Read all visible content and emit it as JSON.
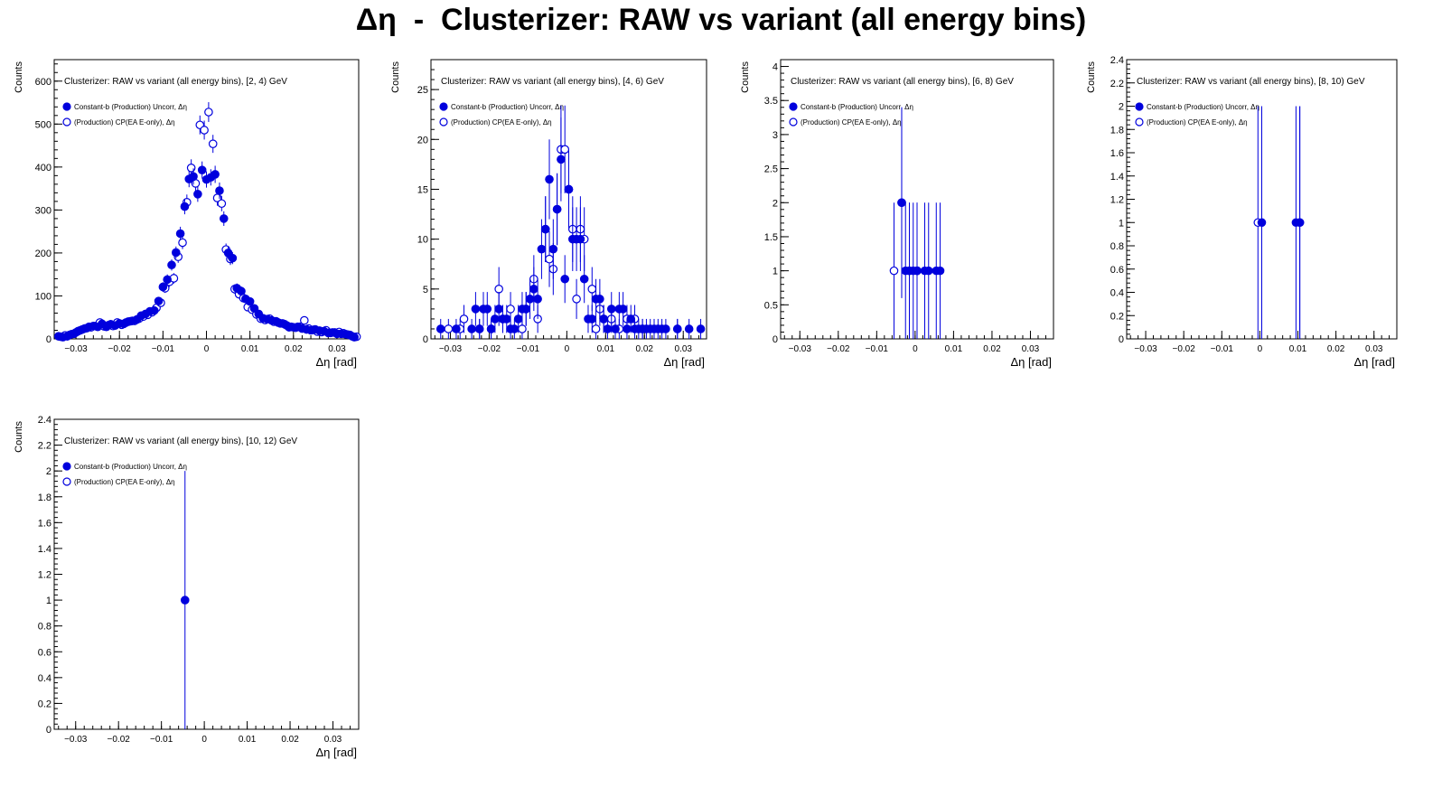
{
  "page_title": "Δη  -  Clusterizer: RAW vs variant (all energy bins)",
  "colors": {
    "marker": "#0000dd",
    "axis": "#000000",
    "frame": "#000000"
  },
  "chart_data": [
    {
      "type": "scatter",
      "title": "Clusterizer: RAW vs variant (all energy bins), [2, 4) GeV",
      "xlabel": "Δη  [rad]",
      "ylabel": "Counts",
      "xlim": [
        -0.035,
        0.035
      ],
      "ylim": [
        0,
        650
      ],
      "xticks": [
        -0.03,
        -0.02,
        -0.01,
        0,
        0.01,
        0.02,
        0.03
      ],
      "xtick_labels": [
        "−0.03",
        "−0.02",
        "−0.01",
        "0",
        "0.01",
        "0.02",
        "0.03"
      ],
      "yticks": [
        0,
        100,
        200,
        300,
        400,
        500,
        600
      ],
      "ytick_labels": [
        "0",
        "100",
        "200",
        "300",
        "400",
        "500",
        "600"
      ],
      "legend_position": "top-left",
      "series": [
        {
          "name": "Constant-b (Production) Uncorr, Δη",
          "marker": "filled",
          "x": [
            -0.034,
            -0.033,
            -0.032,
            -0.031,
            -0.03,
            -0.029,
            -0.028,
            -0.027,
            -0.026,
            -0.025,
            -0.024,
            -0.023,
            -0.022,
            -0.021,
            -0.02,
            -0.019,
            -0.018,
            -0.017,
            -0.016,
            -0.015,
            -0.014,
            -0.013,
            -0.012,
            -0.011,
            -0.01,
            -0.009,
            -0.008,
            -0.007,
            -0.006,
            -0.005,
            -0.004,
            -0.003,
            -0.002,
            -0.001,
            0.0,
            0.001,
            0.002,
            0.003,
            0.004,
            0.005,
            0.006,
            0.007,
            0.008,
            0.009,
            0.01,
            0.011,
            0.012,
            0.013,
            0.014,
            0.015,
            0.016,
            0.017,
            0.018,
            0.019,
            0.02,
            0.021,
            0.022,
            0.023,
            0.024,
            0.025,
            0.026,
            0.027,
            0.028,
            0.029,
            0.03,
            0.031,
            0.032,
            0.033,
            0.034
          ],
          "y": [
            6,
            4,
            6,
            11,
            15,
            20,
            24,
            28,
            30,
            28,
            35,
            28,
            34,
            31,
            36,
            35,
            40,
            42,
            45,
            54,
            58,
            64,
            66,
            88,
            121,
            138,
            172,
            201,
            245,
            308,
            372,
            378,
            337,
            393,
            371,
            376,
            383,
            345,
            280,
            200,
            188,
            118,
            111,
            93,
            87,
            71,
            58,
            48,
            46,
            43,
            41,
            36,
            34,
            27,
            27,
            28,
            24,
            22,
            20,
            22,
            19,
            18,
            14,
            15,
            12,
            12,
            11,
            9,
            4
          ],
          "err": [
            3,
            2,
            3,
            3,
            4,
            5,
            5,
            5,
            6,
            5,
            6,
            5,
            6,
            6,
            6,
            6,
            6,
            7,
            7,
            7,
            8,
            8,
            8,
            9,
            11,
            12,
            13,
            14,
            16,
            18,
            19,
            19,
            18,
            20,
            19,
            19,
            20,
            19,
            17,
            14,
            14,
            11,
            11,
            10,
            9,
            8,
            8,
            7,
            7,
            7,
            6,
            6,
            6,
            5,
            5,
            5,
            5,
            5,
            4,
            5,
            4,
            4,
            4,
            4,
            3,
            3,
            3,
            3,
            2
          ]
        },
        {
          "name": "(Production) CP(EA E-only), Δη",
          "marker": "open",
          "x": [
            -0.0335,
            -0.0325,
            -0.0315,
            -0.0305,
            -0.0295,
            -0.0285,
            -0.0275,
            -0.0265,
            -0.0255,
            -0.0245,
            -0.0235,
            -0.0225,
            -0.0215,
            -0.0205,
            -0.0195,
            -0.0185,
            -0.0175,
            -0.0165,
            -0.0155,
            -0.0145,
            -0.0135,
            -0.0125,
            -0.0115,
            -0.0105,
            -0.0095,
            -0.0085,
            -0.0075,
            -0.0065,
            -0.0055,
            -0.0045,
            -0.0035,
            -0.0025,
            -0.0015,
            -0.0005,
            0.0005,
            0.0015,
            0.0025,
            0.0035,
            0.0045,
            0.0055,
            0.0065,
            0.0075,
            0.0085,
            0.0095,
            0.0105,
            0.0115,
            0.0125,
            0.0135,
            0.0145,
            0.0155,
            0.0165,
            0.0175,
            0.0185,
            0.0195,
            0.0205,
            0.0215,
            0.0225,
            0.0235,
            0.0245,
            0.0255,
            0.0265,
            0.0275,
            0.0285,
            0.0295,
            0.0305,
            0.0315,
            0.0325,
            0.0335,
            0.0345
          ],
          "y": [
            5,
            8,
            9,
            12,
            18,
            22,
            25,
            27,
            30,
            38,
            29,
            32,
            30,
            38,
            33,
            38,
            41,
            42,
            47,
            52,
            56,
            62,
            72,
            84,
            118,
            133,
            141,
            191,
            224,
            318,
            398,
            362,
            498,
            486,
            528,
            454,
            328,
            315,
            208,
            186,
            116,
            104,
            95,
            74,
            68,
            57,
            47,
            44,
            47,
            40,
            38,
            36,
            31,
            28,
            26,
            28,
            43,
            24,
            21,
            17,
            16,
            20,
            14,
            15,
            16,
            13,
            10,
            6,
            5
          ],
          "err": [
            2,
            3,
            3,
            3,
            4,
            5,
            5,
            5,
            5,
            6,
            5,
            6,
            5,
            6,
            6,
            6,
            6,
            7,
            7,
            7,
            7,
            8,
            8,
            9,
            11,
            12,
            12,
            14,
            15,
            18,
            20,
            19,
            22,
            22,
            23,
            21,
            18,
            18,
            14,
            14,
            11,
            10,
            10,
            9,
            8,
            8,
            7,
            7,
            7,
            6,
            6,
            6,
            6,
            5,
            5,
            5,
            7,
            5,
            5,
            4,
            4,
            4,
            4,
            4,
            4,
            4,
            3,
            2,
            2
          ]
        }
      ]
    },
    {
      "type": "scatter",
      "title": "Clusterizer: RAW vs variant (all energy bins), [4, 6) GeV",
      "xlabel": "Δη  [rad]",
      "ylabel": "Counts",
      "xlim": [
        -0.035,
        0.036
      ],
      "ylim": [
        0,
        28
      ],
      "xticks": [
        -0.03,
        -0.02,
        -0.01,
        0,
        0.01,
        0.02,
        0.03
      ],
      "xtick_labels": [
        "−0.03",
        "−0.02",
        "−0.01",
        "0",
        "0.01",
        "0.02",
        "0.03"
      ],
      "yticks": [
        0,
        5,
        10,
        15,
        20,
        25
      ],
      "ytick_labels": [
        "0",
        "5",
        "10",
        "15",
        "20",
        "25"
      ],
      "legend_position": "top-left",
      "series": [
        {
          "name": "Constant-b (Production) Uncorr, Δη",
          "marker": "filled",
          "x": [
            -0.0325,
            -0.0285,
            -0.0245,
            -0.0235,
            -0.0225,
            -0.0215,
            -0.0205,
            -0.0195,
            -0.0185,
            -0.0175,
            -0.0165,
            -0.0155,
            -0.0145,
            -0.0135,
            -0.0125,
            -0.0115,
            -0.0105,
            -0.0095,
            -0.0085,
            -0.0075,
            -0.0065,
            -0.0055,
            -0.0045,
            -0.0035,
            -0.0025,
            -0.0015,
            -0.0005,
            0.0005,
            0.0015,
            0.0025,
            0.0035,
            0.0045,
            0.0055,
            0.0065,
            0.0075,
            0.0085,
            0.0095,
            0.0105,
            0.0115,
            0.0125,
            0.0135,
            0.0145,
            0.0155,
            0.0165,
            0.0175,
            0.0185,
            0.0195,
            0.0205,
            0.0215,
            0.0225,
            0.0235,
            0.0245,
            0.0255,
            0.0285,
            0.0315,
            0.0345
          ],
          "x_note": "",
          "y": [
            1,
            1,
            1,
            3,
            1,
            3,
            3,
            1,
            2,
            3,
            2,
            2,
            1,
            1,
            2,
            3,
            3,
            4,
            5,
            4,
            9,
            11,
            16,
            9,
            13,
            18,
            6,
            15,
            10,
            10,
            10,
            6,
            2,
            2,
            4,
            4,
            2,
            1,
            3,
            1,
            3,
            3,
            1,
            2,
            1,
            1,
            1,
            1,
            1,
            1,
            1,
            1,
            1,
            1,
            1,
            1
          ],
          "err": [
            1,
            1,
            1,
            1.7,
            1,
            1.7,
            1.7,
            1,
            1.4,
            1.7,
            1.4,
            1.4,
            1,
            1,
            1.4,
            1.7,
            1.7,
            2,
            2.2,
            2,
            3,
            3.3,
            4,
            3,
            3.6,
            4.2,
            2.4,
            3.9,
            3.2,
            3.2,
            3.2,
            2.4,
            1.4,
            1.4,
            2,
            2,
            1.4,
            1,
            1.7,
            1,
            1.7,
            1.7,
            1,
            1.4,
            1,
            1,
            1,
            1,
            1,
            1,
            1,
            1,
            1,
            1,
            1,
            1
          ]
        },
        {
          "name": "(Production) CP(EA E-only), Δη",
          "marker": "open",
          "x": [
            -0.0305,
            -0.0275,
            -0.0265,
            -0.0225,
            -0.0195,
            -0.0175,
            -0.0165,
            -0.0145,
            -0.0115,
            -0.0105,
            -0.0085,
            -0.0075,
            -0.0055,
            -0.0045,
            -0.0035,
            -0.0025,
            -0.0015,
            -0.0005,
            0.0005,
            0.0015,
            0.0025,
            0.0035,
            0.0045,
            0.0065,
            0.0075,
            0.0085,
            0.0095,
            0.0115,
            0.0135,
            0.0155,
            0.0175,
            0.0195,
            0.0285
          ],
          "y": [
            1,
            1,
            2,
            1,
            1,
            5,
            2,
            3,
            1,
            3,
            6,
            2,
            11,
            8,
            7,
            13,
            19,
            19,
            15,
            11,
            4,
            11,
            10,
            5,
            1,
            3,
            2,
            2,
            1,
            2,
            2,
            1,
            1
          ],
          "err": [
            1,
            1,
            1.4,
            1,
            1,
            2.2,
            1.4,
            1.7,
            1,
            1.7,
            2.4,
            1.4,
            3.3,
            2.8,
            2.6,
            3.6,
            4.4,
            4.4,
            3.9,
            3.3,
            2,
            3.3,
            3.2,
            2.2,
            1,
            1.7,
            1.4,
            1.4,
            1,
            1.4,
            1.4,
            1,
            1
          ]
        }
      ]
    },
    {
      "type": "scatter",
      "title": "Clusterizer: RAW vs variant (all energy bins), [6, 8) GeV",
      "xlabel": "Δη  [rad]",
      "ylabel": "Counts",
      "xlim": [
        -0.035,
        0.036
      ],
      "ylim": [
        0,
        4.1
      ],
      "xticks": [
        -0.03,
        -0.02,
        -0.01,
        0,
        0.01,
        0.02,
        0.03
      ],
      "xtick_labels": [
        "−0.03",
        "−0.02",
        "−0.01",
        "0",
        "0.01",
        "0.02",
        "0.03"
      ],
      "yticks": [
        0,
        0.5,
        1,
        1.5,
        2,
        2.5,
        3,
        3.5,
        4
      ],
      "ytick_labels": [
        "0",
        "0.5",
        "1",
        "1.5",
        "2",
        "2.5",
        "3",
        "3.5",
        "4"
      ],
      "legend_position": "top-left",
      "series": [
        {
          "name": "Constant-b (Production) Uncorr, Δη",
          "marker": "filled",
          "x": [
            -0.0035,
            -0.0025,
            -0.0015,
            -0.0005,
            0.0005,
            0.0025,
            0.0035,
            0.0055,
            0.0065
          ],
          "y": [
            2,
            1,
            1,
            1,
            1,
            1,
            1,
            1,
            1
          ],
          "err": [
            1.4,
            1,
            1,
            1,
            1,
            1,
            1,
            1,
            1
          ]
        },
        {
          "name": "(Production) CP(EA E-only), Δη",
          "marker": "open",
          "x": [
            -0.0055,
            -0.0035,
            -0.0015,
            0.0005
          ],
          "y": [
            1,
            2,
            1,
            1
          ],
          "err": [
            1,
            1.4,
            1,
            1
          ]
        }
      ]
    },
    {
      "type": "scatter",
      "title": "Clusterizer: RAW vs variant (all energy bins), [8, 10) GeV",
      "xlabel": "Δη  [rad]",
      "ylabel": "Counts",
      "xlim": [
        -0.035,
        0.036
      ],
      "ylim": [
        0,
        2.4
      ],
      "xticks": [
        -0.03,
        -0.02,
        -0.01,
        0,
        0.01,
        0.02,
        0.03
      ],
      "xtick_labels": [
        "−0.03",
        "−0.02",
        "−0.01",
        "0",
        "0.01",
        "0.02",
        "0.03"
      ],
      "yticks": [
        0,
        0.2,
        0.4,
        0.6,
        0.8,
        1,
        1.2,
        1.4,
        1.6,
        1.8,
        2,
        2.2,
        2.4
      ],
      "ytick_labels": [
        "0",
        "0.2",
        "0.4",
        "0.6",
        "0.8",
        "1",
        "1.2",
        "1.4",
        "1.6",
        "1.8",
        "2",
        "2.2",
        "2.4"
      ],
      "legend_position": "top-left",
      "series": [
        {
          "name": "Constant-b (Production) Uncorr, Δη",
          "marker": "filled",
          "x": [
            0.0005,
            0.0095,
            0.0105
          ],
          "y": [
            1,
            1,
            1
          ],
          "err": [
            1,
            1,
            1
          ]
        },
        {
          "name": "(Production) CP(EA E-only), Δη",
          "marker": "open",
          "x": [
            -0.0005,
            0.0105
          ],
          "y": [
            1,
            1
          ],
          "err": [
            1,
            1
          ]
        }
      ]
    },
    {
      "type": "scatter",
      "title": "Clusterizer: RAW vs variant (all energy bins), [10, 12) GeV",
      "xlabel": "Δη  [rad]",
      "ylabel": "Counts",
      "xlim": [
        -0.035,
        0.036
      ],
      "ylim": [
        0,
        2.4
      ],
      "xticks": [
        -0.03,
        -0.02,
        -0.01,
        0,
        0.01,
        0.02,
        0.03
      ],
      "xtick_labels": [
        "−0.03",
        "−0.02",
        "−0.01",
        "0",
        "0.01",
        "0.02",
        "0.03"
      ],
      "yticks": [
        0,
        0.2,
        0.4,
        0.6,
        0.8,
        1,
        1.2,
        1.4,
        1.6,
        1.8,
        2,
        2.2,
        2.4
      ],
      "ytick_labels": [
        "0",
        "0.2",
        "0.4",
        "0.6",
        "0.8",
        "1",
        "1.2",
        "1.4",
        "1.6",
        "1.8",
        "2",
        "2.2",
        "2.4"
      ],
      "legend_position": "top-left",
      "series": [
        {
          "name": "Constant-b (Production) Uncorr, Δη",
          "marker": "filled",
          "x": [
            -0.0045
          ],
          "y": [
            1
          ],
          "err": [
            1
          ]
        },
        {
          "name": "(Production) CP(EA E-only), Δη",
          "marker": "open",
          "x": [],
          "y": [],
          "err": []
        }
      ]
    }
  ]
}
